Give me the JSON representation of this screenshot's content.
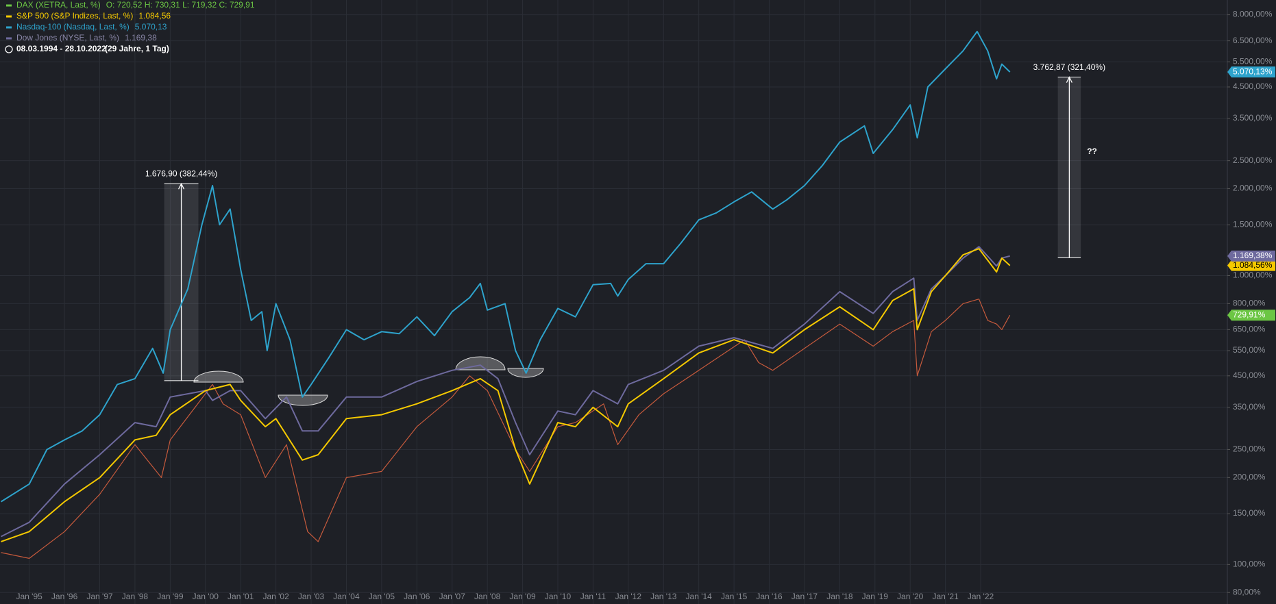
{
  "chart_data": {
    "type": "line",
    "date_range": "08.03.1994 - 28.10.2022",
    "duration": "(29 Jahre, 1 Tag)",
    "log_scale": true,
    "grid": true,
    "xlim": [
      1994.17,
      2029.0
    ],
    "ylim": [
      73,
      9000
    ],
    "xticks": [
      {
        "value": 1995,
        "label": "Jan '95"
      },
      {
        "value": 1996,
        "label": "Jan '96"
      },
      {
        "value": 1997,
        "label": "Jan '97"
      },
      {
        "value": 1998,
        "label": "Jan '98"
      },
      {
        "value": 1999,
        "label": "Jan '99"
      },
      {
        "value": 2000,
        "label": "Jan '00"
      },
      {
        "value": 2001,
        "label": "Jan '01"
      },
      {
        "value": 2002,
        "label": "Jan '02"
      },
      {
        "value": 2003,
        "label": "Jan '03"
      },
      {
        "value": 2004,
        "label": "Jan '04"
      },
      {
        "value": 2005,
        "label": "Jan '05"
      },
      {
        "value": 2006,
        "label": "Jan '06"
      },
      {
        "value": 2007,
        "label": "Jan '07"
      },
      {
        "value": 2008,
        "label": "Jan '08"
      },
      {
        "value": 2009,
        "label": "Jan '09"
      },
      {
        "value": 2010,
        "label": "Jan '10"
      },
      {
        "value": 2011,
        "label": "Jan '11"
      },
      {
        "value": 2012,
        "label": "Jan '12"
      },
      {
        "value": 2013,
        "label": "Jan '13"
      },
      {
        "value": 2014,
        "label": "Jan '14"
      },
      {
        "value": 2015,
        "label": "Jan '15"
      },
      {
        "value": 2016,
        "label": "Jan '16"
      },
      {
        "value": 2017,
        "label": "Jan '17"
      },
      {
        "value": 2018,
        "label": "Jan '18"
      },
      {
        "value": 2019,
        "label": "Jan '19"
      },
      {
        "value": 2020,
        "label": "Jan '20"
      },
      {
        "value": 2021,
        "label": "Jan '21"
      },
      {
        "value": 2022,
        "label": "Jan '22"
      }
    ],
    "yticks": [
      {
        "value": 80,
        "label": "80,00%"
      },
      {
        "value": 100,
        "label": "100,00%"
      },
      {
        "value": 150,
        "label": "150,00%"
      },
      {
        "value": 200,
        "label": "200,00%"
      },
      {
        "value": 250,
        "label": "250,00%"
      },
      {
        "value": 350,
        "label": "350,00%"
      },
      {
        "value": 450,
        "label": "450,00%"
      },
      {
        "value": 550,
        "label": "550,00%"
      },
      {
        "value": 650,
        "label": "650,00%"
      },
      {
        "value": 800,
        "label": "800,00%"
      },
      {
        "value": 1000,
        "label": "1.000,00%"
      },
      {
        "value": 1500,
        "label": "1.500,00%"
      },
      {
        "value": 2000,
        "label": "2.000,00%"
      },
      {
        "value": 2500,
        "label": "2.500,00%"
      },
      {
        "value": 3500,
        "label": "3.500,00%"
      },
      {
        "value": 4500,
        "label": "4.500,00%"
      },
      {
        "value": 5500,
        "label": "5.500,00%"
      },
      {
        "value": 6500,
        "label": "6.500,00%"
      },
      {
        "value": 8000,
        "label": "8.000,00%"
      }
    ],
    "series": [
      {
        "name": "DAX (XETRA, Last, %)",
        "header_value": "O: 720,52  H: 730,31  L: 719,32  C: 729,91",
        "color": "#c65a3c",
        "label_color": "#6cc644",
        "last_label": "729,91%",
        "x": [
          1994.2,
          1995,
          1996,
          1997,
          1998,
          1998.75,
          1999,
          2000.2,
          2000.5,
          2001,
          2001.7,
          2002.3,
          2002.9,
          2003.2,
          2004,
          2005,
          2006,
          2007,
          2007.5,
          2008,
          2008.8,
          2009.2,
          2010,
          2010.5,
          2011.3,
          2011.7,
          2012.3,
          2013,
          2014,
          2015.3,
          2015.7,
          2016.1,
          2017,
          2018,
          2018.95,
          2019.5,
          2020.1,
          2020.2,
          2020.6,
          2021,
          2021.5,
          2021.95,
          2022.2,
          2022.45,
          2022.6,
          2022.83
        ],
        "values": [
          110,
          105,
          130,
          175,
          260,
          200,
          270,
          420,
          360,
          330,
          200,
          260,
          130,
          120,
          200,
          210,
          300,
          380,
          450,
          400,
          250,
          210,
          300,
          310,
          360,
          260,
          330,
          390,
          470,
          600,
          500,
          470,
          560,
          680,
          570,
          640,
          700,
          450,
          640,
          700,
          800,
          830,
          700,
          680,
          650,
          729.91
        ]
      },
      {
        "name": "S&P 500 (S&P Indizes, Last, %)",
        "header_value": "1.084,56",
        "color": "#f5c900",
        "label_color": "#f5c900",
        "last_label": "1.084,56%",
        "x": [
          1994.2,
          1995,
          1996,
          1997,
          1998,
          1998.6,
          1999,
          2000,
          2000.7,
          2001,
          2001.7,
          2002,
          2002.75,
          2003.2,
          2004,
          2005,
          2006,
          2007,
          2007.8,
          2008.3,
          2008.8,
          2009.2,
          2010,
          2010.5,
          2011,
          2011.7,
          2012,
          2013,
          2014,
          2015,
          2016.1,
          2017,
          2018,
          2018.95,
          2019.5,
          2020.1,
          2020.2,
          2020.6,
          2021,
          2021.5,
          2021.95,
          2022.45,
          2022.6,
          2022.83
        ],
        "values": [
          120,
          130,
          165,
          200,
          270,
          280,
          330,
          400,
          420,
          370,
          300,
          320,
          230,
          240,
          320,
          330,
          360,
          400,
          440,
          400,
          250,
          190,
          310,
          300,
          350,
          300,
          360,
          440,
          540,
          600,
          540,
          650,
          780,
          650,
          820,
          900,
          650,
          880,
          1000,
          1180,
          1240,
          1030,
          1150,
          1084.56
        ]
      },
      {
        "name": "Nasdaq-100 (Nasdaq, Last, %)",
        "header_value": "5.070,13",
        "color": "#2ea3cc",
        "label_color": "#2ea3cc",
        "last_label": "5.070,13%",
        "x": [
          1994.2,
          1995,
          1995.5,
          1996,
          1996.5,
          1997,
          1997.5,
          1998,
          1998.5,
          1998.8,
          1999,
          1999.5,
          1999.9,
          2000.2,
          2000.4,
          2000.7,
          2001,
          2001.3,
          2001.6,
          2001.75,
          2002,
          2002.4,
          2002.75,
          2003,
          2003.5,
          2004,
          2004.5,
          2005,
          2005.5,
          2006,
          2006.5,
          2007,
          2007.5,
          2007.8,
          2008,
          2008.5,
          2008.8,
          2009.1,
          2009.5,
          2010,
          2010.5,
          2011,
          2011.5,
          2011.7,
          2012,
          2012.5,
          2013,
          2013.5,
          2014,
          2014.5,
          2015,
          2015.5,
          2016.1,
          2016.5,
          2017,
          2017.5,
          2018,
          2018.7,
          2018.95,
          2019.5,
          2020,
          2020.2,
          2020.5,
          2021,
          2021.5,
          2021.9,
          2022.2,
          2022.45,
          2022.6,
          2022.83
        ],
        "values": [
          165,
          190,
          250,
          270,
          290,
          330,
          420,
          440,
          560,
          460,
          650,
          900,
          1500,
          2050,
          1500,
          1700,
          1050,
          700,
          750,
          550,
          800,
          600,
          380,
          420,
          520,
          650,
          600,
          640,
          630,
          720,
          620,
          750,
          840,
          940,
          760,
          800,
          550,
          460,
          600,
          770,
          720,
          930,
          940,
          850,
          970,
          1100,
          1100,
          1300,
          1560,
          1650,
          1800,
          1950,
          1700,
          1830,
          2050,
          2400,
          2900,
          3300,
          2650,
          3200,
          3900,
          3000,
          4500,
          5200,
          6000,
          7000,
          6000,
          4800,
          5400,
          5070.13
        ]
      },
      {
        "name": "Dow Jones (NYSE, Last, %)",
        "header_value": "1.169,38",
        "color": "#6e6a9e",
        "label_color": "#6e6a9e",
        "last_label": "1.169,38%",
        "x": [
          1994.2,
          1995,
          1996,
          1997,
          1998,
          1998.6,
          1999,
          2000,
          2000.2,
          2000.7,
          2001,
          2001.7,
          2002.3,
          2002.75,
          2003.2,
          2004,
          2005,
          2006,
          2007,
          2007.8,
          2008.3,
          2008.8,
          2009.2,
          2010,
          2010.5,
          2011,
          2011.7,
          2012,
          2013,
          2014,
          2015,
          2016.1,
          2017,
          2018,
          2018.95,
          2019.5,
          2020.1,
          2020.2,
          2020.6,
          2021,
          2021.5,
          2021.95,
          2022.45,
          2022.6,
          2022.83
        ],
        "values": [
          125,
          140,
          190,
          240,
          310,
          300,
          380,
          400,
          370,
          400,
          400,
          320,
          380,
          290,
          290,
          380,
          380,
          430,
          470,
          490,
          440,
          310,
          240,
          340,
          330,
          400,
          360,
          420,
          470,
          570,
          610,
          560,
          680,
          880,
          740,
          880,
          980,
          700,
          900,
          1000,
          1150,
          1260,
          1080,
          1150,
          1169.38
        ]
      }
    ],
    "measures": [
      {
        "label": "1.676,90 (382,44%)",
        "xlim": [
          1998.83,
          1999.8
        ],
        "ylim": [
          433,
          2081
        ]
      },
      {
        "label": "3.762,87 (321,40%)",
        "xlim": [
          2024.19,
          2024.84
        ],
        "ylim": [
          1153,
          4867
        ]
      }
    ],
    "annotation": {
      "text": "??",
      "x": 2025.16,
      "y": 2680
    }
  }
}
